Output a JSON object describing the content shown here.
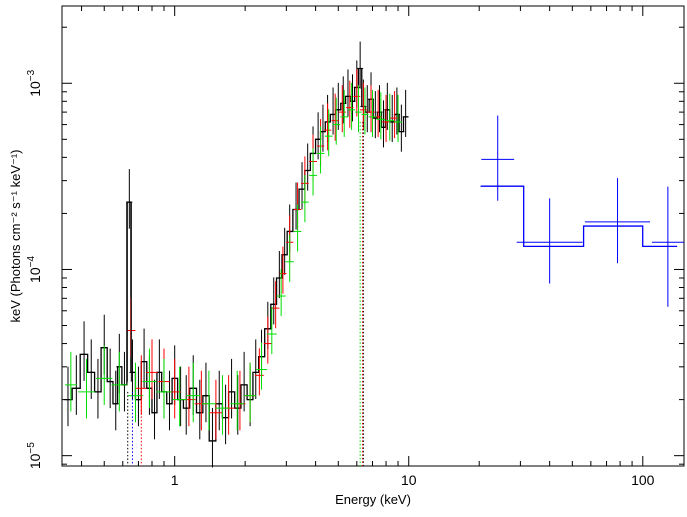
{
  "chart_data": {
    "type": "scatter",
    "title": "",
    "xlabel": "Energy (keV)",
    "ylabel": "keV (Photons cm⁻² s⁻¹ keV⁻¹)",
    "x_scale": "log",
    "y_scale": "log",
    "xlim": [
      0.33,
      150
    ],
    "ylim": [
      8.8e-06,
      0.0026
    ],
    "grid": false,
    "x_ticks": [
      {
        "value": 1,
        "label": "1"
      },
      {
        "value": 10,
        "label": "10"
      },
      {
        "value": 100,
        "label": "100"
      }
    ],
    "y_ticks": [
      {
        "value": 1e-05,
        "base": "10",
        "exp": "−5"
      },
      {
        "value": 0.0001,
        "base": "10",
        "exp": "−4"
      },
      {
        "value": 0.001,
        "base": "10",
        "exp": "−3"
      }
    ],
    "colors": {
      "black": "#000000",
      "red": "#ff0000",
      "green": "#00dd00",
      "blue": "#0000ff"
    },
    "series": [
      {
        "color": "black",
        "points": [
          [
            0.35,
            2e-05
          ],
          [
            0.38,
            2.3e-05
          ],
          [
            0.41,
            3.5e-05
          ],
          [
            0.44,
            2.8e-05
          ],
          [
            0.47,
            2.2e-05
          ],
          [
            0.5,
            3.8e-05
          ],
          [
            0.53,
            2.5e-05
          ],
          [
            0.56,
            1.9e-05
          ],
          [
            0.58,
            3e-05
          ],
          [
            0.61,
            2.4e-05
          ],
          [
            0.64,
            0.00023
          ],
          [
            0.66,
            2.8e-05
          ],
          [
            0.7,
            2e-05
          ],
          [
            0.74,
            3.2e-05
          ],
          [
            0.78,
            2.3e-05
          ],
          [
            0.82,
            1.7e-05
          ],
          [
            0.86,
            2.8e-05
          ],
          [
            0.9,
            2.2e-05
          ],
          [
            0.95,
            1.9e-05
          ],
          [
            1.0,
            2.6e-05
          ],
          [
            1.06,
            2e-05
          ],
          [
            1.12,
            1.8e-05
          ],
          [
            1.2,
            2.3e-05
          ],
          [
            1.28,
            1.7e-05
          ],
          [
            1.36,
            2.1e-05
          ],
          [
            1.45,
            1.2e-05
          ],
          [
            1.55,
            1.9e-05
          ],
          [
            1.65,
            1.6e-05
          ],
          [
            1.75,
            2.2e-05
          ],
          [
            1.86,
            1.8e-05
          ],
          [
            1.98,
            2.4e-05
          ],
          [
            2.1,
            2e-05
          ],
          [
            2.22,
            2.8e-05
          ],
          [
            2.35,
            3.4e-05
          ],
          [
            2.5,
            4.8e-05
          ],
          [
            2.65,
            6.5e-05
          ],
          [
            2.8,
            9e-05
          ],
          [
            2.95,
            0.00012
          ],
          [
            3.1,
            0.00016
          ],
          [
            3.3,
            0.00021
          ],
          [
            3.5,
            0.00027
          ],
          [
            3.7,
            0.00034
          ],
          [
            3.9,
            0.00042
          ],
          [
            4.1,
            0.0005
          ],
          [
            4.3,
            0.00055
          ],
          [
            4.5,
            0.00062
          ],
          [
            4.75,
            0.00068
          ],
          [
            5.0,
            0.00072
          ],
          [
            5.25,
            0.00078
          ],
          [
            5.5,
            0.00085
          ],
          [
            5.75,
            0.0008
          ],
          [
            6.0,
            0.00095
          ],
          [
            6.2,
            0.0012
          ],
          [
            6.4,
            0.00075
          ],
          [
            6.65,
            0.0007
          ],
          [
            6.9,
            0.00082
          ],
          [
            7.2,
            0.00065
          ],
          [
            7.5,
            0.0007
          ],
          [
            7.8,
            0.00058
          ],
          [
            8.1,
            0.00072
          ],
          [
            8.5,
            0.00062
          ],
          [
            8.9,
            0.00068
          ],
          [
            9.3,
            0.00055
          ],
          [
            9.7,
            0.00066
          ]
        ]
      },
      {
        "color": "red",
        "points": [
          [
            0.65,
            4.7e-05
          ],
          [
            0.72,
            2.3e-05
          ],
          [
            0.8,
            2.8e-05
          ],
          [
            0.9,
            2.5e-05
          ],
          [
            1.0,
            2.2e-05
          ],
          [
            1.15,
            2e-05
          ],
          [
            1.3,
            1.9e-05
          ],
          [
            1.5,
            1.7e-05
          ],
          [
            1.7,
            1.8e-05
          ],
          [
            1.9,
            1.9e-05
          ],
          [
            2.1,
            2.1e-05
          ],
          [
            2.3,
            2.7e-05
          ],
          [
            2.5,
            4e-05
          ],
          [
            2.7,
            6.2e-05
          ],
          [
            2.9,
            9.5e-05
          ],
          [
            3.1,
            0.00014
          ],
          [
            3.35,
            0.00021
          ],
          [
            3.6,
            0.00029
          ],
          [
            3.9,
            0.00038
          ],
          [
            4.2,
            0.00046
          ],
          [
            4.5,
            0.00056
          ],
          [
            4.85,
            0.00063
          ],
          [
            5.2,
            0.0007
          ],
          [
            5.6,
            0.00074
          ],
          [
            6.0,
            0.00085
          ],
          [
            6.4,
            0.00072
          ],
          [
            6.9,
            0.0007
          ],
          [
            7.4,
            0.00066
          ],
          [
            8.0,
            0.00062
          ],
          [
            8.7,
            0.00065
          ]
        ]
      },
      {
        "color": "green",
        "points": [
          [
            0.36,
            2.4e-05
          ],
          [
            0.42,
            2.2e-05
          ],
          [
            0.5,
            2.6e-05
          ],
          [
            0.58,
            2.4e-05
          ],
          [
            0.68,
            2.1e-05
          ],
          [
            0.78,
            2.5e-05
          ],
          [
            0.9,
            2.2e-05
          ],
          [
            1.05,
            2e-05
          ],
          [
            1.2,
            2.1e-05
          ],
          [
            1.4,
            1.9e-05
          ],
          [
            1.6,
            1.8e-05
          ],
          [
            1.85,
            1.9e-05
          ],
          [
            2.1,
            2.1e-05
          ],
          [
            2.35,
            2.9e-05
          ],
          [
            2.6,
            4.5e-05
          ],
          [
            2.85,
            7.2e-05
          ],
          [
            3.1,
            0.00011
          ],
          [
            3.35,
            0.00016
          ],
          [
            3.6,
            0.00023
          ],
          [
            3.9,
            0.00032
          ],
          [
            4.2,
            0.00042
          ],
          [
            4.55,
            0.00052
          ],
          [
            4.9,
            0.0006
          ],
          [
            5.3,
            0.00066
          ],
          [
            5.7,
            0.00072
          ],
          [
            6.1,
            0.0007
          ],
          [
            6.5,
            0.00068
          ],
          [
            7.0,
            0.00066
          ],
          [
            7.6,
            0.00064
          ],
          [
            8.3,
            0.00063
          ],
          [
            9.0,
            0.00062
          ]
        ]
      },
      {
        "color": "blue",
        "points": [
          [
            24,
            0.00039
          ],
          [
            40,
            0.00014
          ],
          [
            78,
            0.00018
          ],
          [
            128,
            0.00014
          ]
        ]
      }
    ]
  }
}
